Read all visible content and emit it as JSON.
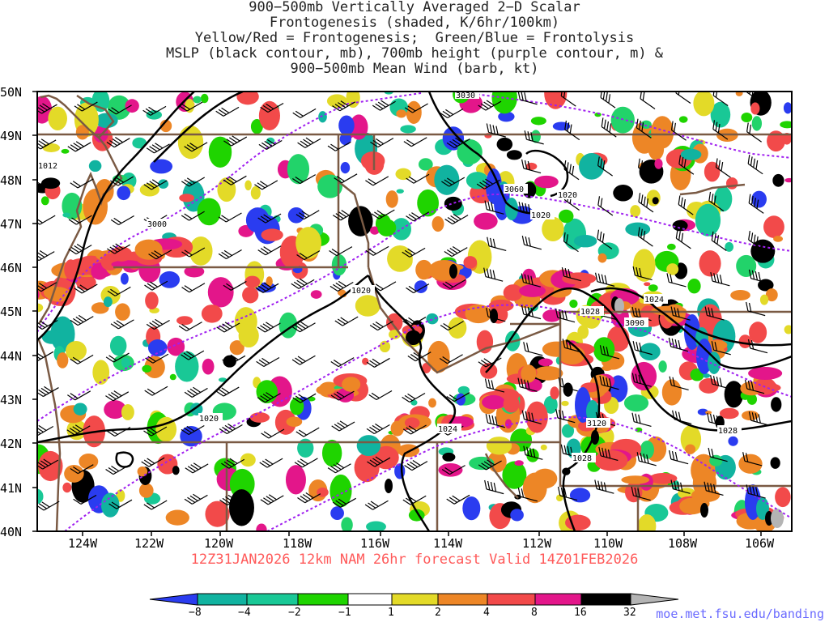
{
  "title": {
    "line1": "900−500mb Vertically Averaged 2−D Scalar",
    "line2": "Frontogenesis (shaded, K/6hr/100km)",
    "line3": "Yellow/Red = Frontogenesis;  Green/Blue = Frontolysis",
    "line4": "MSLP (black contour, mb), 700mb height (purple contour, m) &",
    "line5": "900−500mb Mean Wind (barb, kt)"
  },
  "forecast_label": "12Z31JAN2026 12km NAM 26hr forecast Valid 14Z01FEB2026",
  "website": "moe.met.fsu.edu/banding",
  "axes": {
    "lat_labels": [
      "50N",
      "49N",
      "48N",
      "47N",
      "46N",
      "45N",
      "44N",
      "43N",
      "42N",
      "41N",
      "40N"
    ],
    "lon_labels": [
      "124W",
      "122W",
      "120W",
      "118W",
      "116W",
      "114W",
      "112W",
      "110W",
      "108W",
      "106W"
    ]
  },
  "contour_labels": {
    "mslp": [
      "1020",
      "1020",
      "1020",
      "1020",
      "1024",
      "1028",
      "1024",
      "1028",
      "1028",
      "1012"
    ],
    "height_700mb": [
      "3000",
      "3030",
      "3060",
      "3090",
      "3120"
    ]
  },
  "colorbar": {
    "ticks": [
      "−8",
      "−4",
      "−2",
      "−1",
      "1",
      "2",
      "4",
      "8",
      "16",
      "32"
    ],
    "colors": {
      "blue": "#2a3cf0",
      "teal1": "#11b3a0",
      "teal2": "#19c896",
      "green1": "#22d36a",
      "green2": "#1fd400",
      "white": "#ffffff",
      "yellow": "#e3da28",
      "orange": "#ed8626",
      "red": "#f24a4a",
      "magenta": "#e3168a",
      "black": "#000000",
      "gray": "#b4b4b4"
    }
  },
  "colors": {
    "state_borders": "#7a5a44",
    "mslp_contour": "#000000",
    "height_contour": "#a020f0",
    "forecast_text": "#ff5a5a",
    "website_text": "#6a6aff"
  }
}
